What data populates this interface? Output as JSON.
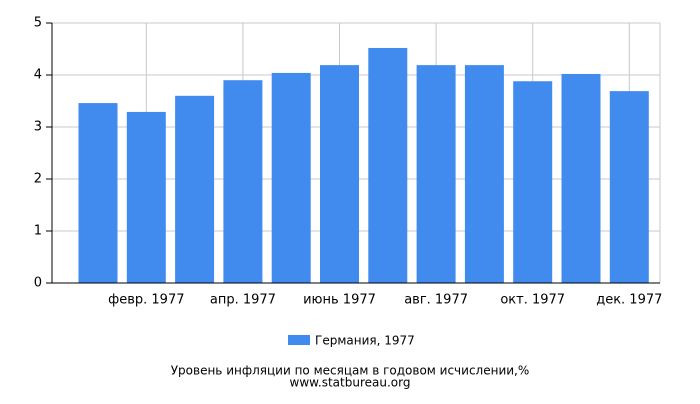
{
  "chart_data": {
    "type": "bar",
    "title": "Уровень инфляции по месяцам в годовом исчислении,%",
    "source": "www.statbureau.org",
    "categories": [
      null,
      "февр. 1977",
      null,
      "апр. 1977",
      null,
      "июнь 1977",
      null,
      "авг. 1977",
      null,
      "окт. 1977",
      null,
      "дек. 1977"
    ],
    "series": [
      {
        "name": "Германия, 1977",
        "color": "#418bef",
        "values": [
          3.46,
          3.29,
          3.6,
          3.9,
          4.04,
          4.19,
          4.52,
          4.19,
          4.19,
          3.88,
          4.02,
          3.69
        ]
      }
    ],
    "ylim": [
      0,
      5
    ],
    "yticks": [
      0,
      1,
      2,
      3,
      4,
      5
    ],
    "grid": true
  }
}
